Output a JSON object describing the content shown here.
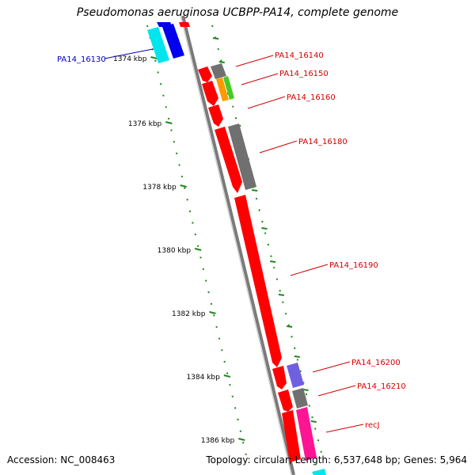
{
  "title": "Pseudomonas aeruginosa UCBPP-PA14, complete genome",
  "accession_text": "Accession: NC_008463",
  "summary_text": "Topology: circular; Length: 6,537,648 bp; Genes: 5,964",
  "colors": {
    "backbone": "#7a7a7a",
    "tick_dot": "#1b8a1b",
    "label_red": "#d40000",
    "label_blue": "#0000c0",
    "gene_red": "#ff0000",
    "gene_grey": "#707070",
    "gene_blue": "#0000ee",
    "gene_cyan": "#00e5ee",
    "gene_orange": "#ff9900",
    "gene_green": "#44cc22",
    "gene_purple": "#7060e0",
    "gene_pink": "#ff1493"
  },
  "scale_labels": [
    "1374 kbp",
    "1376 kbp",
    "1378 kbp",
    "1380 kbp",
    "1382 kbp",
    "1384 kbp",
    "1386 kbp"
  ],
  "genes": [
    {
      "label": "PA14_16130",
      "color": "blue"
    },
    {
      "label": "PA14_16140",
      "color": "red"
    },
    {
      "label": "PA14_16150",
      "color": "red"
    },
    {
      "label": "PA14_16160",
      "color": "red"
    },
    {
      "label": "PA14_16180",
      "color": "red"
    },
    {
      "label": "PA14_16190",
      "color": "red"
    },
    {
      "label": "PA14_16200",
      "color": "red"
    },
    {
      "label": "PA14_16210",
      "color": "red"
    },
    {
      "label": "recJ",
      "color": "red"
    }
  ]
}
